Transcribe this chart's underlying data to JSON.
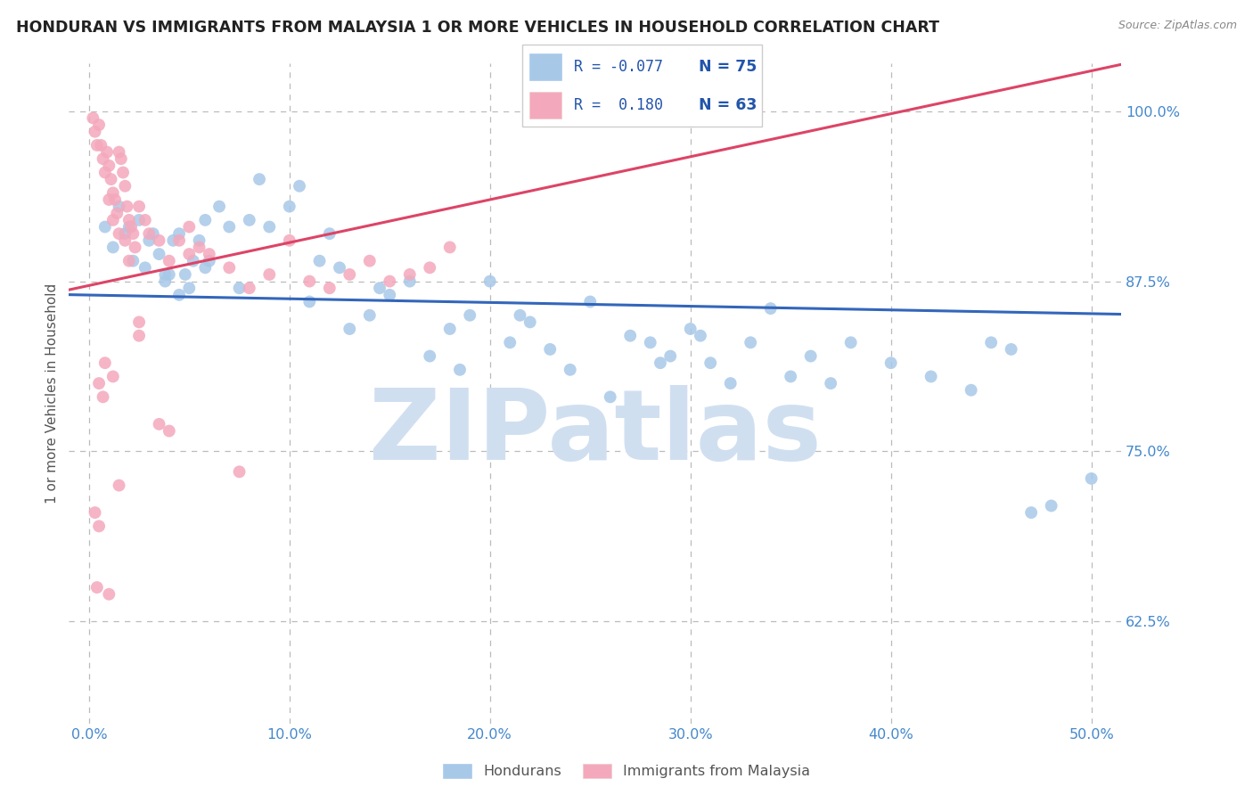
{
  "title": "HONDURAN VS IMMIGRANTS FROM MALAYSIA 1 OR MORE VEHICLES IN HOUSEHOLD CORRELATION CHART",
  "source": "Source: ZipAtlas.com",
  "xlabel_ticks": [
    "0.0%",
    "10.0%",
    "20.0%",
    "30.0%",
    "40.0%",
    "50.0%"
  ],
  "xlabel_vals": [
    0.0,
    10.0,
    20.0,
    30.0,
    40.0,
    50.0
  ],
  "ylabel_ticks": [
    "62.5%",
    "75.0%",
    "87.5%",
    "100.0%"
  ],
  "ylabel_vals": [
    62.5,
    75.0,
    87.5,
    100.0
  ],
  "xlim": [
    -1.0,
    51.5
  ],
  "ylim": [
    55.0,
    103.5
  ],
  "legend_blue_R": "-0.077",
  "legend_blue_N": "75",
  "legend_pink_R": "0.180",
  "legend_pink_N": "63",
  "blue_color": "#A8C8E8",
  "pink_color": "#F4A8BC",
  "blue_line_color": "#3366BB",
  "pink_line_color": "#DD4466",
  "watermark_color": "#D0DFF0",
  "ylabel": "1 or more Vehicles in Household",
  "legend_label_blue": "Hondurans",
  "legend_label_pink": "Immigrants from Malaysia",
  "blue_x": [
    0.8,
    1.2,
    1.5,
    1.8,
    2.0,
    2.2,
    2.5,
    2.8,
    3.0,
    3.2,
    3.5,
    3.8,
    4.0,
    4.2,
    4.5,
    4.8,
    5.0,
    5.2,
    5.5,
    5.8,
    6.0,
    6.5,
    7.0,
    7.5,
    8.0,
    8.5,
    9.0,
    10.0,
    10.5,
    11.0,
    11.5,
    12.0,
    13.0,
    14.0,
    14.5,
    15.0,
    16.0,
    17.0,
    18.0,
    18.5,
    19.0,
    20.0,
    21.0,
    22.0,
    23.0,
    24.0,
    25.0,
    26.0,
    27.0,
    28.0,
    29.0,
    30.0,
    31.0,
    32.0,
    33.0,
    34.0,
    35.0,
    36.0,
    37.0,
    38.0,
    40.0,
    42.0,
    44.0,
    45.0,
    46.0,
    47.0,
    48.0,
    50.0,
    28.5,
    30.5,
    3.8,
    4.5,
    5.8,
    12.5,
    21.5
  ],
  "blue_y": [
    91.5,
    90.0,
    93.0,
    91.0,
    91.5,
    89.0,
    92.0,
    88.5,
    90.5,
    91.0,
    89.5,
    87.5,
    88.0,
    90.5,
    91.0,
    88.0,
    87.0,
    89.0,
    90.5,
    88.5,
    89.0,
    93.0,
    91.5,
    87.0,
    92.0,
    95.0,
    91.5,
    93.0,
    94.5,
    86.0,
    89.0,
    91.0,
    84.0,
    85.0,
    87.0,
    86.5,
    87.5,
    82.0,
    84.0,
    81.0,
    85.0,
    87.5,
    83.0,
    84.5,
    82.5,
    81.0,
    86.0,
    79.0,
    83.5,
    83.0,
    82.0,
    84.0,
    81.5,
    80.0,
    83.0,
    85.5,
    80.5,
    82.0,
    80.0,
    83.0,
    81.5,
    80.5,
    79.5,
    83.0,
    82.5,
    70.5,
    71.0,
    73.0,
    81.5,
    83.5,
    88.0,
    86.5,
    92.0,
    88.5,
    85.0
  ],
  "pink_x": [
    0.2,
    0.3,
    0.4,
    0.5,
    0.6,
    0.7,
    0.8,
    0.9,
    1.0,
    1.0,
    1.1,
    1.2,
    1.2,
    1.3,
    1.4,
    1.5,
    1.5,
    1.6,
    1.7,
    1.8,
    1.8,
    1.9,
    2.0,
    2.0,
    2.1,
    2.2,
    2.3,
    2.5,
    2.5,
    2.8,
    3.0,
    3.5,
    3.5,
    4.0,
    4.0,
    4.5,
    5.0,
    5.5,
    6.0,
    7.0,
    7.5,
    8.0,
    9.0,
    10.0,
    11.0,
    12.0,
    13.0,
    14.0,
    15.0,
    16.0,
    17.0,
    18.0,
    0.5,
    0.7,
    1.2,
    0.3,
    0.5,
    0.8,
    0.4,
    1.0,
    1.5,
    2.5,
    5.0
  ],
  "pink_y": [
    99.5,
    98.5,
    97.5,
    99.0,
    97.5,
    96.5,
    95.5,
    97.0,
    96.0,
    93.5,
    95.0,
    94.0,
    92.0,
    93.5,
    92.5,
    97.0,
    91.0,
    96.5,
    95.5,
    94.5,
    90.5,
    93.0,
    92.0,
    89.0,
    91.5,
    91.0,
    90.0,
    93.0,
    84.5,
    92.0,
    91.0,
    90.5,
    77.0,
    89.0,
    76.5,
    90.5,
    91.5,
    90.0,
    89.5,
    88.5,
    73.5,
    87.0,
    88.0,
    90.5,
    87.5,
    87.0,
    88.0,
    89.0,
    87.5,
    88.0,
    88.5,
    90.0,
    80.0,
    79.0,
    80.5,
    70.5,
    69.5,
    81.5,
    65.0,
    64.5,
    72.5,
    83.5,
    89.5
  ]
}
